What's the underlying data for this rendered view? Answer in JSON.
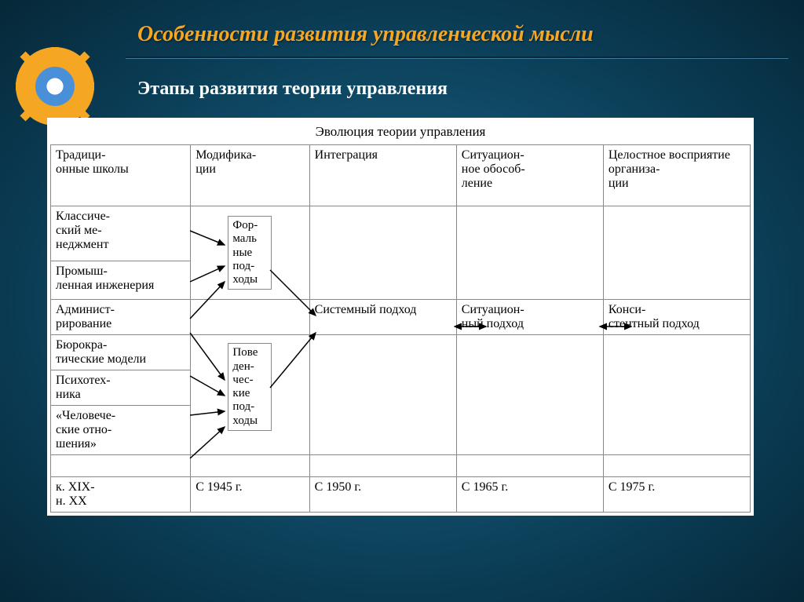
{
  "slide": {
    "title": "Особенности развития управленческой мысли",
    "subtitle": "Этапы развития теории управления"
  },
  "table": {
    "caption": "Эволюция теории управления",
    "headers": {
      "c0": "Традици-\nонные школы",
      "c1": "Модифика-\nции",
      "c2": "Интеграция",
      "c3": "Ситуацион-\nное обособ-\nление",
      "c4": "Целостное восприятие организа-\nции"
    },
    "rows": {
      "r1c0": "Классиче-\nский ме-\nнеджмент",
      "r2c0": "Промыш-\nленная инженерия",
      "r3c0": "Админист-\nрирование",
      "r3c2": "Системный подход",
      "r3c3": "Ситуацион-\nный подход",
      "r3c4": "Конси-\nстентный подход",
      "r4c0": "Бюрокра-\nтические модели",
      "r5c0": "Психотех-\nника",
      "r6c0": "«Человече-\nские отно-\nшения»",
      "box1": "Фор-\nмаль\nные\nпод-\nходы",
      "box2": "Пове\nден-\nчес-\nкие\nпод-\nходы",
      "footer": {
        "c0": "к. XIX-\nн. XX",
        "c1": "С 1945 г.",
        "c2": "С 1950 г.",
        "c3": "С 1965 г.",
        "c4": "С 1975 г."
      }
    }
  },
  "style": {
    "bg_gradient_center": "#1a6a8e",
    "bg_gradient_edge": "#062838",
    "title_color": "#f5a623",
    "subtitle_color": "#ffffff",
    "table_bg": "#ffffff",
    "border_color": "#888888",
    "arrow_color": "#000000",
    "gear_color": "#f5a623",
    "divider_color": "#0a2838",
    "title_fontsize": 28,
    "subtitle_fontsize": 24,
    "cell_fontsize": 16
  }
}
